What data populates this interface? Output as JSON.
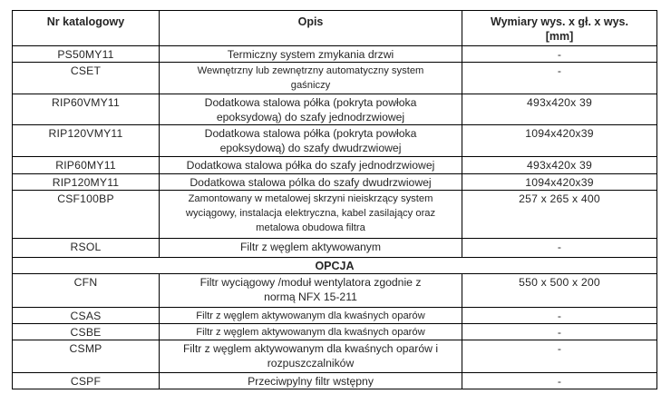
{
  "page": {
    "background_color": "#ffffff",
    "text_color": "#262626",
    "border_color": "#000000"
  },
  "table": {
    "columns": [
      {
        "label": "Nr katalogowy"
      },
      {
        "label": "Opis"
      },
      {
        "label": "Wymiary wys. x gł. x wys.\n[mm]"
      }
    ],
    "rows": [
      {
        "type": "item",
        "code": "PS50MY11",
        "description": "Termiczny system zmykania drzwi",
        "dimensions": "-"
      },
      {
        "type": "item",
        "code": "CSET",
        "description": "Wewnętrzny lub zewnętrzny automatyczny system\ngaśniczy",
        "dimensions": "-"
      },
      {
        "type": "item",
        "code": "RIP60VMY11",
        "description": "Dodatkowa  stalowa półka (pokryta powłoka\nepoksydową) do szafy jednodrzwiowej",
        "dimensions": "493x420x 39"
      },
      {
        "type": "item",
        "code": "RIP120VMY11",
        "description": "Dodatkowa  stalowa półka (pokryta powłoka\nepoksydową) do szafy dwudrzwiowej",
        "dimensions": "1094x420x39"
      },
      {
        "type": "item",
        "code": "RIP60MY11",
        "description": "Dodatkowa  stalowa półka do szafy jednodrzwiowej",
        "dimensions": "493x420x 39"
      },
      {
        "type": "item",
        "code": "RIP120MY11",
        "description": "Dodatkowa  stalowa pólka do szafy dwudrzwiowej",
        "dimensions": "1094x420x39"
      },
      {
        "type": "item",
        "code": "CSF100BP",
        "description": "Zamontowany w metalowej skrzyni nieiskrzący system\nwyciągowy, instalacja elektryczna, kabel zasilający oraz\nmetalowa obudowa filtra",
        "dimensions": "257 x 265 x 400"
      },
      {
        "type": "item",
        "code": "RSOL",
        "description": "Filtr z węglem aktywowanym",
        "dimensions": "-"
      },
      {
        "type": "section",
        "label": "OPCJA"
      },
      {
        "type": "item",
        "code": "CFN",
        "description": "Filtr wyciągowy /moduł wentylatora zgodnie z\nnormą NFX 15-211",
        "dimensions": "550 x 500 x 200"
      },
      {
        "type": "item",
        "code": "CSAS",
        "description": "Filtr z węglem aktywowanym dla kwaśnych oparów",
        "dimensions": "-"
      },
      {
        "type": "item",
        "code": "CSBE",
        "description": "Filtr z węglem aktywowanym dla kwaśnych oparów",
        "dimensions": "-"
      },
      {
        "type": "item",
        "code": "CSMP",
        "description": "Filtr z węglem aktywowanym dla kwaśnych oparów i\nrozpuszczalników",
        "dimensions": "-"
      },
      {
        "type": "item",
        "code": "CSPF",
        "description": "Przeciwpylny filtr wstępny",
        "dimensions": "-"
      }
    ]
  }
}
